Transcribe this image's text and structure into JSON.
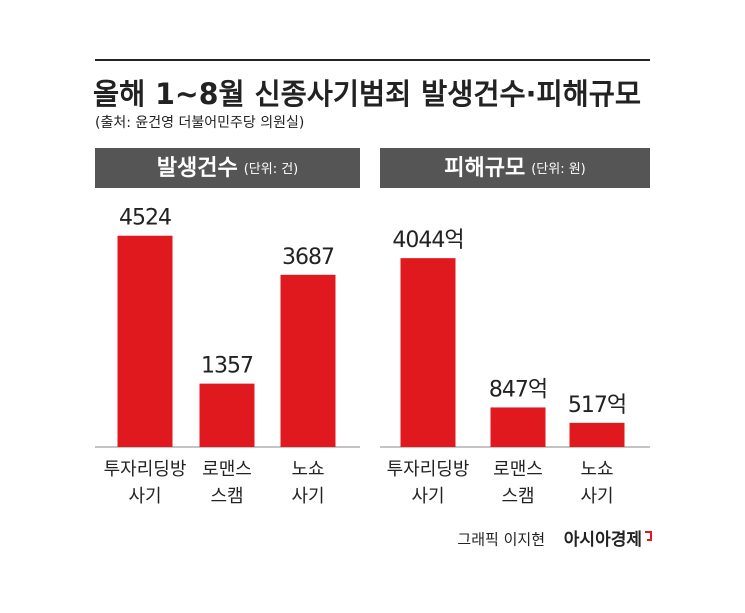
{
  "title": "올해 1~8월 신종사기범죄 발생건수·피해규모",
  "subtitle": "(출처: 윤건영 더불어민주당 의원실)",
  "chart_data": [
    {
      "type": "bar",
      "title": "발생건수",
      "unit": "(단위: 건)",
      "categories": [
        [
          "투자리딩방",
          "사기"
        ],
        [
          "로맨스",
          "스캠"
        ],
        [
          "노쇼",
          "사기"
        ]
      ],
      "values": [
        4524,
        1357,
        3687
      ],
      "color": "#e0191f"
    },
    {
      "type": "bar",
      "title": "피해규모",
      "unit": "(단위: 원)",
      "categories": [
        [
          "투자리딩방",
          "사기"
        ],
        [
          "로맨스",
          "스캠"
        ],
        [
          "노쇼",
          "사기"
        ]
      ],
      "values": [
        4044,
        847,
        517
      ],
      "value_labels": [
        "4044억",
        "847억",
        "517억"
      ],
      "color": "#e0191f"
    }
  ],
  "footer": {
    "credit": "그래픽 이지현",
    "brand": "아시아경제"
  }
}
